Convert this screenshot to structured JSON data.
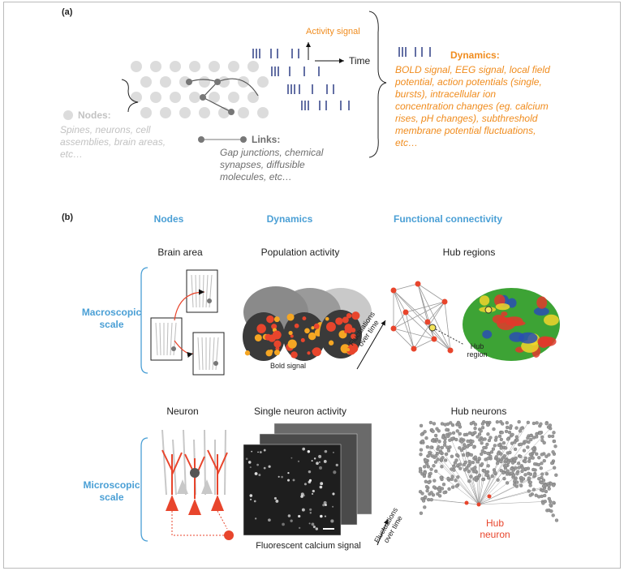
{
  "panel_a": {
    "label": "(a)",
    "activity_signal": "Activity signal",
    "time": "Time",
    "nodes": {
      "title": "Nodes:",
      "text": "Spines, neurons, cell assemblies, brain areas, etc…"
    },
    "links": {
      "title": "Links:",
      "text": "Gap junctions, chemical synapses, diffusible molecules, etc…"
    },
    "dynamics": {
      "title": "Dynamics:",
      "text": "BOLD signal, EEG signal, local field potential, action potentials (single, bursts), intracellular ion concentration changes (eg. calcium rises, pH changes), subthreshold membrane potential fluctuations, etc…"
    }
  },
  "panel_b": {
    "label": "(b)",
    "columns": [
      "Nodes",
      "Dynamics",
      "Functional connectivity"
    ],
    "rows": [
      {
        "scale": "Macroscopic scale",
        "node": "Brain area",
        "dynamics": "Population activity",
        "connectivity": "Hub regions",
        "dynamics_caption": "Bold signal",
        "time_caption": "Fluctuations over time",
        "hub_label": "Hub region"
      },
      {
        "scale": "Microscopic scale",
        "node": "Neuron",
        "dynamics": "Single neuron activity",
        "connectivity": "Hub neurons",
        "dynamics_caption": "Fluorescent calcium signal",
        "time_caption": "Fluctuations over time",
        "hub_label": "Hub neuron"
      }
    ]
  }
}
